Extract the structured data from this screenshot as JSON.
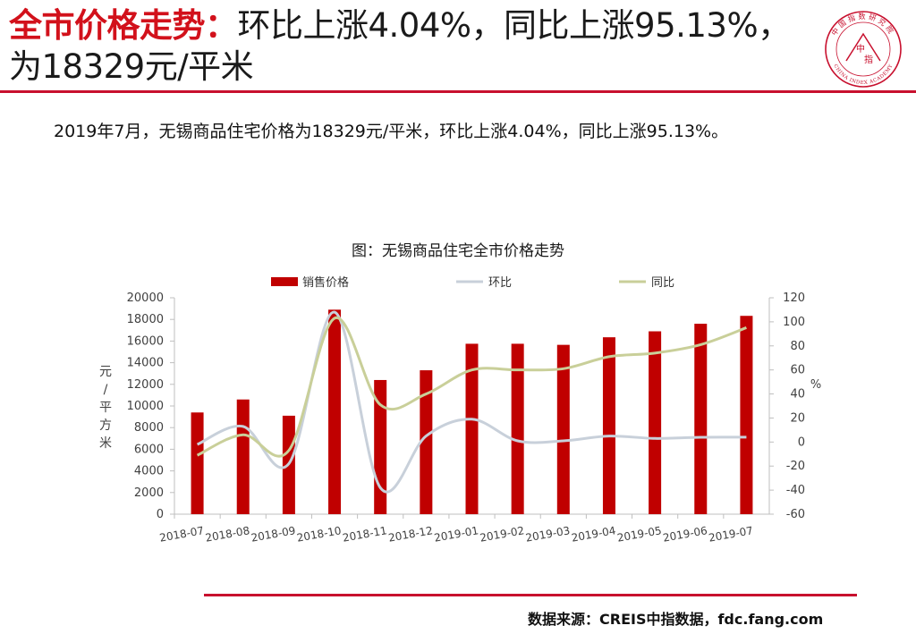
{
  "header": {
    "title_highlight": "全市价格走势：",
    "title_rest": "环比上涨4.04%，同比上涨95.13%，为18329元/平米",
    "logo_top_text": "中国指数研究院",
    "logo_center_top": "中",
    "logo_center_bottom": "指",
    "logo_bottom_text": "CHINA INDEX ACADEMY"
  },
  "summary": "2019年7月，无锡商品住宅价格为18329元/平米，环比上涨4.04%，同比上涨95.13%。",
  "source": "数据来源：CREIS中指数据，fdc.fang.com",
  "colors": {
    "accent": "#c8102e",
    "bar": "#c00000",
    "mom_line": "#c8d0da",
    "yoy_line": "#c9cf99"
  },
  "chart_data": {
    "type": "bar",
    "title": "图：无锡商品住宅全市价格走势",
    "categories": [
      "2018-07",
      "2018-08",
      "2018-09",
      "2018-10",
      "2018-11",
      "2018-12",
      "2019-01",
      "2019-02",
      "2019-03",
      "2019-04",
      "2019-05",
      "2019-06",
      "2019-07"
    ],
    "series": [
      {
        "name": "销售价格",
        "type": "bar",
        "axis": "left",
        "values": [
          9400,
          10600,
          9100,
          18900,
          12400,
          13300,
          15750,
          15750,
          15650,
          16350,
          16900,
          17600,
          18329
        ]
      },
      {
        "name": "环比",
        "type": "line",
        "axis": "right",
        "values": [
          -2,
          13,
          -18,
          108,
          -38,
          5,
          19,
          1,
          1,
          5,
          3,
          4,
          4.04
        ]
      },
      {
        "name": "同比",
        "type": "line",
        "axis": "right",
        "values": [
          -11,
          6,
          -7,
          103,
          31,
          40,
          60,
          60,
          61,
          71,
          74,
          81,
          95.13
        ]
      }
    ],
    "ylabel": "元/平方米",
    "ylabel_right": "%",
    "ylim": [
      0,
      20000
    ],
    "yticks": [
      "0",
      "2000",
      "4000",
      "6000",
      "8000",
      "10000",
      "12000",
      "14000",
      "16000",
      "18000",
      "20000"
    ],
    "ylim_right": [
      -60,
      120
    ],
    "yticks_right": [
      "-60",
      "-40",
      "-20",
      "0",
      "20",
      "40",
      "60",
      "80",
      "100",
      "120"
    ],
    "legend_position": "top",
    "grid": false
  }
}
